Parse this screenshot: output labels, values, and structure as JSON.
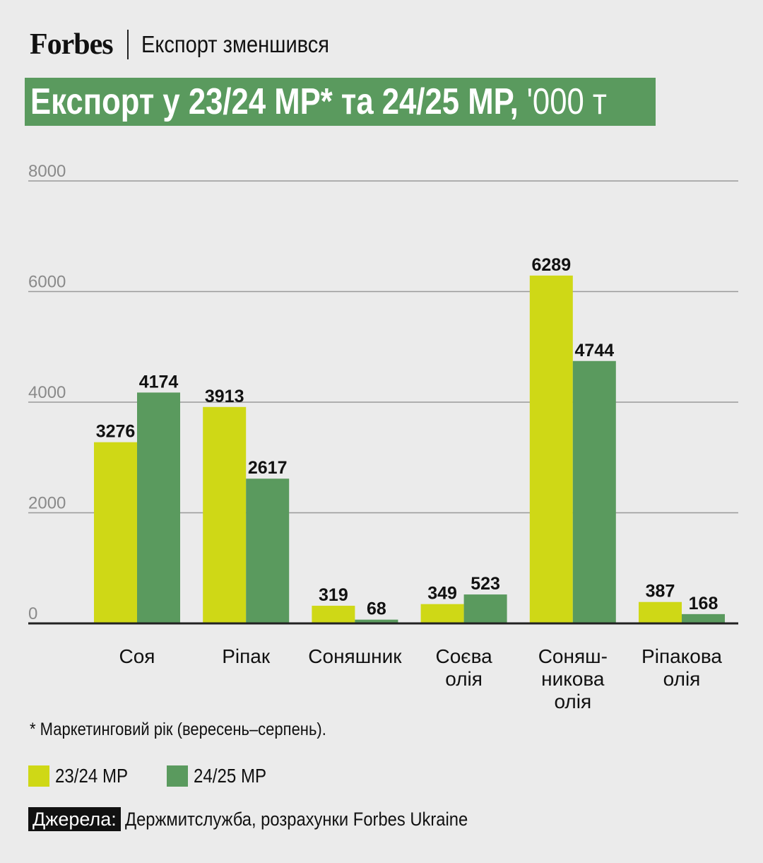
{
  "header": {
    "brand": "Forbes",
    "title": "Експорт зменшився"
  },
  "chart_data": {
    "type": "bar",
    "title": "Експорт у 23/24 МР* та 24/25 МР,",
    "unit": "'000 т",
    "categories": [
      [
        "Соя"
      ],
      [
        "Ріпак"
      ],
      [
        "Соняшник"
      ],
      [
        "Соєва",
        "олія"
      ],
      [
        "Соняш-",
        "никова",
        "олія"
      ],
      [
        "Ріпакова",
        "олія"
      ]
    ],
    "series": [
      {
        "name": "23/24 МР",
        "color": "#cfd816",
        "values": [
          3276,
          3913,
          319,
          349,
          6289,
          387
        ]
      },
      {
        "name": "24/25 МР",
        "color": "#5a9a5e",
        "values": [
          4174,
          2617,
          68,
          523,
          4744,
          168
        ]
      }
    ],
    "yticks": [
      0,
      2000,
      4000,
      6000,
      8000
    ],
    "ylim": [
      0,
      8000
    ],
    "grid": true,
    "legend_position": "bottom-left"
  },
  "footnote": "* Маркетинговий рік (вересень–серпень).",
  "source": {
    "label": "Джерела:",
    "text": "Держмитслужба, розрахунки Forbes Ukraine"
  }
}
